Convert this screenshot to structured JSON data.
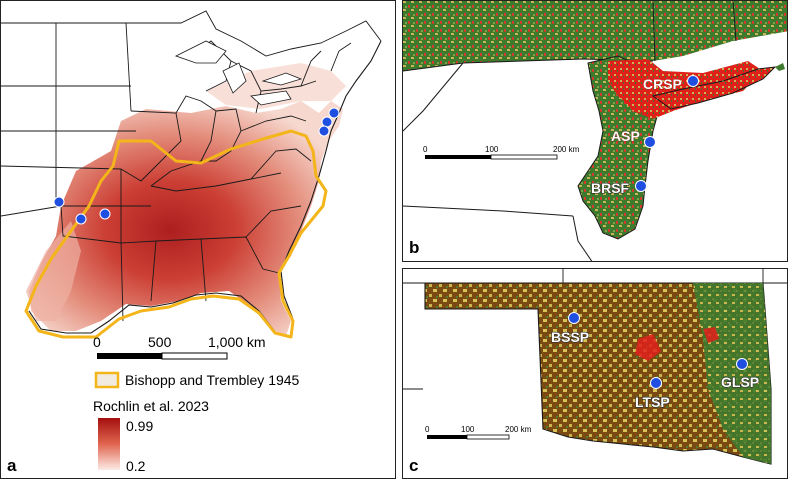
{
  "panel_a": {
    "letter": "a",
    "scale_labels": [
      "0",
      "500",
      "1,000 km"
    ],
    "legend_polygon_label": "Bishopp and Trembley 1945",
    "legend_raster_title": "Rochlin et al. 2023",
    "legend_max": "0.99",
    "legend_min": "0.2",
    "colors": {
      "range_outline": "#f3b51a",
      "high": "#b01818",
      "low": "#fbe9e4",
      "site": "#1f4fe0"
    }
  },
  "panel_b": {
    "letter": "b",
    "scale_labels": [
      "0",
      "100",
      "200 km"
    ],
    "sites": [
      {
        "label": "CRSP"
      },
      {
        "label": "ASP"
      },
      {
        "label": "BRSF"
      }
    ]
  },
  "panel_c": {
    "letter": "c",
    "scale_labels": [
      "0",
      "100",
      "200 km"
    ],
    "sites": [
      {
        "label": "BSSP"
      },
      {
        "label": "LTSP"
      },
      {
        "label": "GLSP"
      }
    ]
  }
}
